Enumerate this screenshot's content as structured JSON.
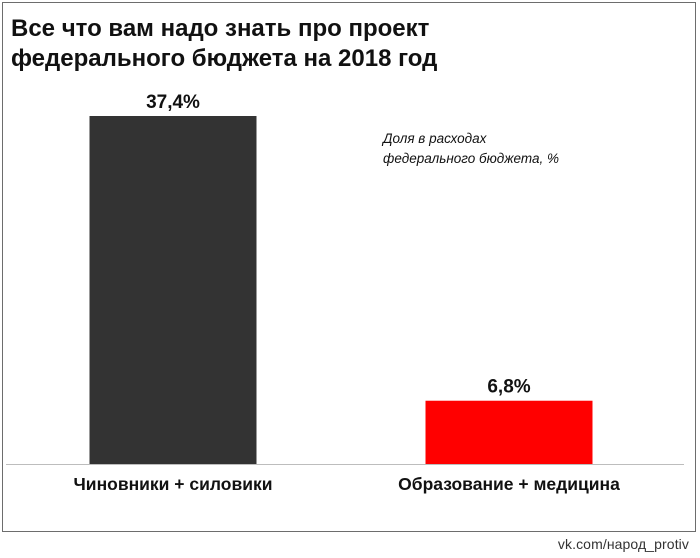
{
  "title_lines": [
    "Все что вам надо знать про проект",
    "федерального бюджета на 2018 год"
  ],
  "note_lines": [
    "Доля в расходах",
    "федерального бюджета, %"
  ],
  "credit": "vk.com/народ_protiv",
  "colors": {
    "bar_dark": "#333333",
    "bar_red": "#ff0000",
    "axis": "#bdbdbd",
    "text": "#111111"
  },
  "chart_data": {
    "type": "bar",
    "categories": [
      "Чиновники + силовики",
      "Образование + медицина"
    ],
    "values": [
      37.4,
      6.8
    ],
    "data_labels": [
      "37,4%",
      "6,8%"
    ],
    "bar_colors": [
      "#333333",
      "#ff0000"
    ],
    "ylim": [
      0,
      37.4
    ],
    "grid": false,
    "legend": "none"
  }
}
